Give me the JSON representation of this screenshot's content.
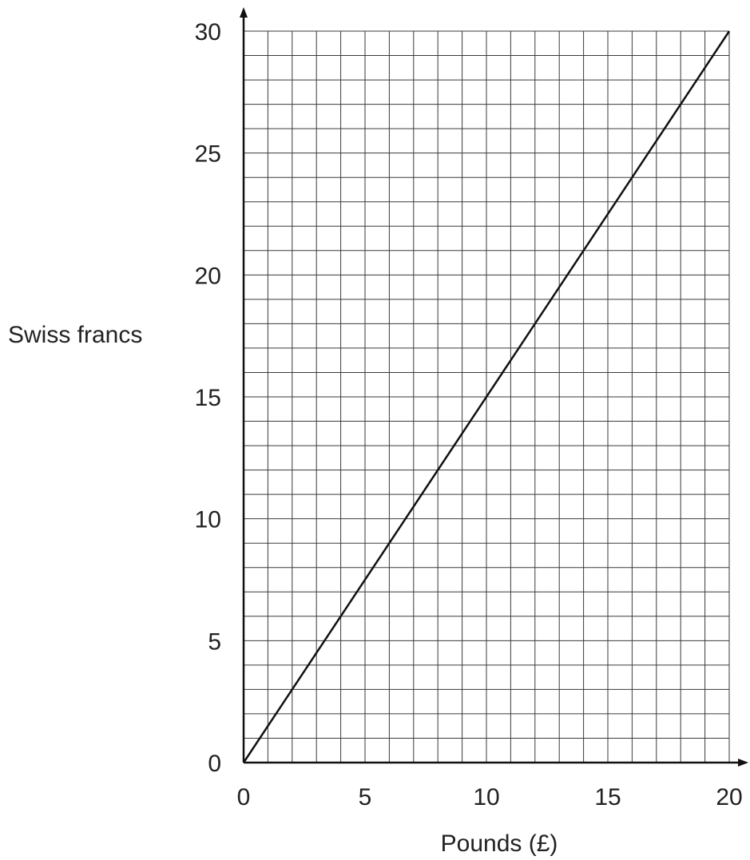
{
  "chart_data": {
    "type": "line",
    "title": "",
    "xlabel": "Pounds (£)",
    "ylabel": "Swiss francs",
    "xlim": [
      0,
      20
    ],
    "ylim": [
      0,
      30
    ],
    "x_ticks": [
      0,
      5,
      10,
      15,
      20
    ],
    "y_ticks": [
      0,
      5,
      10,
      15,
      20,
      25,
      30
    ],
    "x_minor_step": 1,
    "y_minor_step": 1,
    "grid": true,
    "series": [
      {
        "x": [
          0,
          20
        ],
        "y": [
          0,
          30
        ]
      }
    ],
    "colors": {
      "line": "#111111",
      "grid": "#3a3a3a",
      "text": "#222222"
    }
  }
}
